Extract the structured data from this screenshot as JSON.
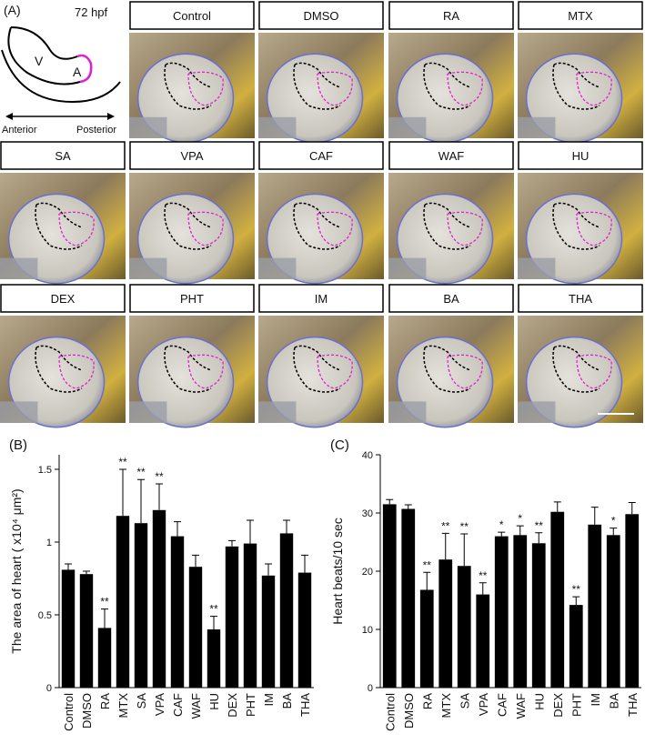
{
  "panel_a": {
    "label": "(A)",
    "stage": "72 hpf",
    "diagram": {
      "ventricle": "V",
      "atrium": "A",
      "anterior": "Anterior",
      "posterior": "Posterior"
    },
    "images": [
      "Control",
      "DMSO",
      "RA",
      "MTX",
      "SA",
      "VPA",
      "CAF",
      "WAF",
      "HU",
      "DEX",
      "PHT",
      "IM",
      "BA",
      "THA"
    ]
  },
  "chart_data": [
    {
      "type": "bar",
      "panel": "(B)",
      "y_label": "The area of heart ( x10⁴ μm²)",
      "categories": [
        "Control",
        "DMSO",
        "RA",
        "MTX",
        "SA",
        "VPA",
        "CAF",
        "WAF",
        "HU",
        "DEX",
        "PHT",
        "IM",
        "BA",
        "THA"
      ],
      "values": [
        0.81,
        0.78,
        0.41,
        1.18,
        1.13,
        1.22,
        1.04,
        0.83,
        0.4,
        0.97,
        0.99,
        0.77,
        1.06,
        0.79
      ],
      "errors": [
        0.04,
        0.02,
        0.13,
        0.32,
        0.3,
        0.18,
        0.1,
        0.08,
        0.09,
        0.04,
        0.16,
        0.08,
        0.09,
        0.12
      ],
      "annotations": [
        null,
        null,
        "**",
        "**",
        "**",
        "**",
        null,
        null,
        "**",
        null,
        null,
        null,
        null,
        null
      ],
      "color": "#000000",
      "ylim": [
        0,
        1.6
      ],
      "yticks": [
        0,
        0.5,
        1,
        1.5
      ]
    },
    {
      "type": "bar",
      "panel": "(C)",
      "y_label": "Heart beats/10 sec",
      "categories": [
        "Control",
        "DMSO",
        "RA",
        "MTX",
        "SA",
        "VPA",
        "CAF",
        "WAF",
        "HU",
        "DEX",
        "PHT",
        "IM",
        "BA",
        "THA"
      ],
      "values": [
        31.5,
        30.7,
        16.8,
        22.0,
        20.9,
        16.0,
        26.0,
        26.2,
        24.8,
        30.2,
        14.2,
        28.0,
        26.2,
        29.8
      ],
      "errors": [
        0.8,
        0.7,
        3.0,
        4.5,
        5.5,
        2.0,
        0.7,
        1.6,
        1.8,
        1.7,
        1.4,
        3.0,
        1.2,
        2.0
      ],
      "annotations": [
        null,
        null,
        "**",
        "**",
        "**",
        "**",
        "*",
        "*",
        "**",
        null,
        "**",
        null,
        "*",
        null
      ],
      "color": "#000000",
      "ylim": [
        0,
        40
      ],
      "yticks": [
        0,
        10,
        20,
        30,
        40
      ]
    }
  ]
}
